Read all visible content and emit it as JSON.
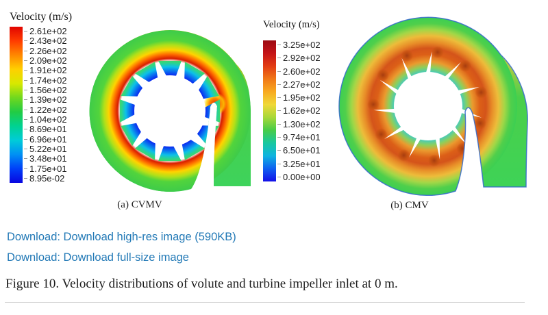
{
  "figure": {
    "colorbars": [
      {
        "title": "Velocity (m/s)",
        "labels": [
          "2.61e+02",
          "2.43e+02",
          "2.26e+02",
          "2.09e+02",
          "1.91e+02",
          "1.74e+02",
          "1.56e+02",
          "1.39e+02",
          "1.22e+02",
          "1.04e+02",
          "8.69e+01",
          "6.96e+01",
          "5.22e+01",
          "3.48e+01",
          "1.75e+01",
          "8.95e-02"
        ],
        "gradient": [
          "#e10400",
          "#ff3c00",
          "#ff8800",
          "#ffd000",
          "#d8e800",
          "#70d81e",
          "#22cc44",
          "#00d291",
          "#00ccd8",
          "#0090f4",
          "#0040f8",
          "#0806e0"
        ]
      },
      {
        "title": "Velocity (m/s)",
        "labels": [
          "3.25e+02",
          "2.92e+02",
          "2.60e+02",
          "2.27e+02",
          "1.95e+02",
          "1.62e+02",
          "1.30e+02",
          "9.74e+01",
          "6.50e+01",
          "3.25e+01",
          "0.00e+00"
        ],
        "gradient": [
          "#9c0a12",
          "#c41418",
          "#e23c14",
          "#f07818",
          "#f8aa20",
          "#f0d838",
          "#a8d838",
          "#48cc48",
          "#18c8a0",
          "#10b4e0",
          "#1060f0",
          "#1410e8"
        ]
      }
    ],
    "panel_labels": [
      "(a) CVMV",
      "(b) CMV"
    ]
  },
  "downloads": [
    "Download: Download high-res image (590KB)",
    "Download: Download full-size image"
  ],
  "caption": "Figure 10. Velocity distributions of volute and turbine impeller inlet at 0 m.",
  "colors": {
    "link": "#2279b6",
    "caption_text": "#1c1c1c",
    "rule": "#cfcfcf",
    "volute_green": "#3ecb4a",
    "volute_hot_red": "#d81e00",
    "impeller_blue": "#0a1ef0",
    "boundary_blue": "#3468cc"
  }
}
